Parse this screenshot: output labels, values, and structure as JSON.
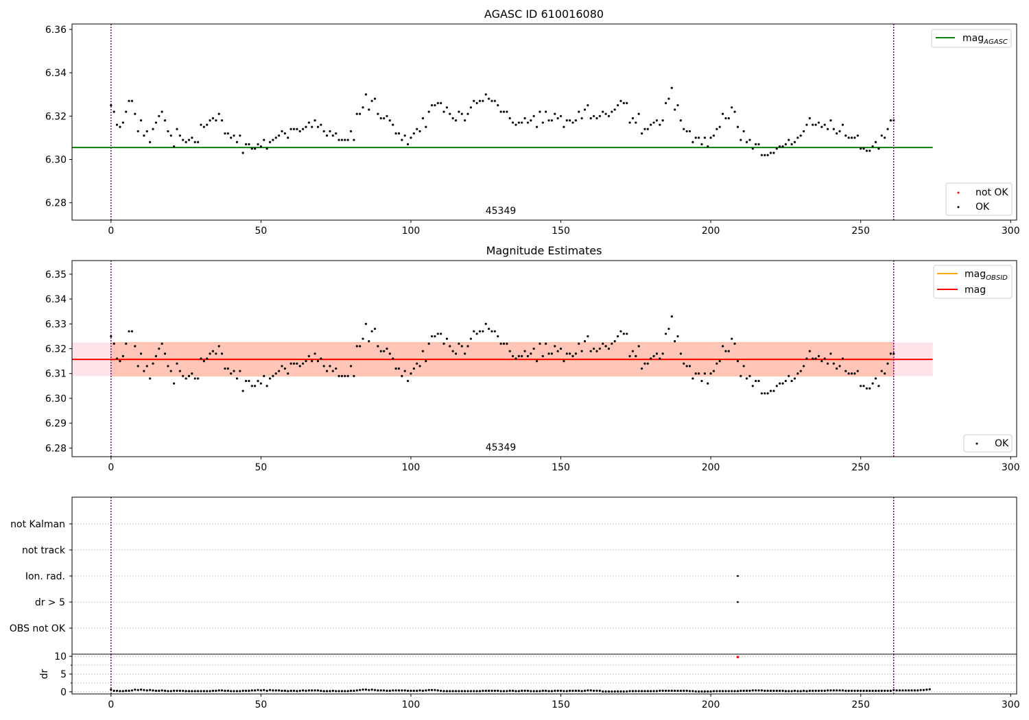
{
  "figure": {
    "width": 1500,
    "height": 1050,
    "colors": {
      "ok": "#000000",
      "not_ok": "#ff0000",
      "agasc": "#008000",
      "obsid": "#ffa500",
      "mag": "#ff0000",
      "band_outer": "#ffc0cb",
      "band_inner": "#ffa07a",
      "vline": "#800080",
      "grid": "#b0b0b0"
    }
  },
  "chart_data": [
    {
      "id": "panel1",
      "type": "scatter",
      "title": "AGASC ID 610016080",
      "xlabel": "",
      "ylabel": "",
      "xlim": [
        -13,
        302
      ],
      "ylim": [
        6.272,
        6.3625
      ],
      "xticks": [
        0,
        50,
        100,
        150,
        200,
        250,
        300
      ],
      "yticks": [
        6.28,
        6.3,
        6.32,
        6.34,
        6.36
      ],
      "yticklabels": [
        "6.28",
        "6.30",
        "6.32",
        "6.34",
        "6.36"
      ],
      "obsid_label": "45349",
      "vlines": [
        0,
        261
      ],
      "hlines": [
        {
          "name": "mag_AGASC",
          "y": 6.3055,
          "x": [
            -13,
            274
          ],
          "color": "#008000"
        }
      ],
      "legend_upper": {
        "position": "upper right",
        "entries": [
          {
            "label": "mag",
            "sub": "AGASC",
            "kind": "line",
            "color": "#008000"
          }
        ]
      },
      "legend_lower": {
        "position": "lower right",
        "entries": [
          {
            "label": "not OK",
            "kind": "marker",
            "color": "#ff0000"
          },
          {
            "label": "OK",
            "kind": "marker",
            "color": "#000000"
          }
        ]
      },
      "series": [
        {
          "name": "OK",
          "color": "#000000",
          "values": [
            6.325,
            6.322,
            6.316,
            6.315,
            6.317,
            6.322,
            6.327,
            6.327,
            6.321,
            6.313,
            6.318,
            6.311,
            6.313,
            6.308,
            6.314,
            6.317,
            6.32,
            6.322,
            6.318,
            6.313,
            6.311,
            6.306,
            6.314,
            6.311,
            6.309,
            6.308,
            6.309,
            6.31,
            6.308,
            6.308,
            6.316,
            6.315,
            6.316,
            6.318,
            6.319,
            6.318,
            6.321,
            6.318,
            6.312,
            6.312,
            6.31,
            6.311,
            6.308,
            6.311,
            6.303,
            6.307,
            6.307,
            6.305,
            6.305,
            6.307,
            6.306,
            6.309,
            6.305,
            6.308,
            6.309,
            6.31,
            6.311,
            6.313,
            6.312,
            6.31,
            6.314,
            6.314,
            6.314,
            6.313,
            6.314,
            6.315,
            6.317,
            6.315,
            6.318,
            6.315,
            6.316,
            6.313,
            6.311,
            6.313,
            6.311,
            6.312,
            6.309,
            6.309,
            6.309,
            6.309,
            6.313,
            6.309,
            6.321,
            6.321,
            6.324,
            6.33,
            6.323,
            6.327,
            6.328,
            6.321,
            6.319,
            6.319,
            6.32,
            6.318,
            6.316,
            6.312,
            6.312,
            6.309,
            6.311,
            6.307,
            6.31,
            6.312,
            6.314,
            6.313,
            6.319,
            6.315,
            6.322,
            6.325,
            6.325,
            6.326,
            6.326,
            6.322,
            6.324,
            6.321,
            6.319,
            6.318,
            6.322,
            6.321,
            6.318,
            6.321,
            6.324,
            6.327,
            6.326,
            6.327,
            6.327,
            6.33,
            6.328,
            6.327,
            6.327,
            6.325,
            6.322,
            6.322,
            6.322,
            6.319,
            6.317,
            6.316,
            6.317,
            6.317,
            6.319,
            6.317,
            6.318,
            6.32,
            6.315,
            6.322,
            6.317,
            6.322,
            6.318,
            6.318,
            6.321,
            6.319,
            6.32,
            6.315,
            6.318,
            6.318,
            6.317,
            6.318,
            6.322,
            6.319,
            6.323,
            6.325,
            6.319,
            6.32,
            6.319,
            6.32,
            6.322,
            6.321,
            6.32,
            6.322,
            6.323,
            6.325,
            6.327,
            6.326,
            6.326,
            6.317,
            6.319,
            6.317,
            6.321,
            6.312,
            6.314,
            6.314,
            6.316,
            6.317,
            6.318,
            6.316,
            6.318,
            6.326,
            6.328,
            6.333,
            6.323,
            6.325,
            6.318,
            6.314,
            6.313,
            6.313,
            6.308,
            6.31,
            6.31,
            6.307,
            6.31,
            6.306,
            6.31,
            6.311,
            6.314,
            6.315,
            6.321,
            6.319,
            6.319,
            6.324,
            6.322,
            6.315,
            6.309,
            6.313,
            6.308,
            6.309,
            6.305,
            6.307,
            6.307,
            6.302,
            6.302,
            6.302,
            6.303,
            6.303,
            6.305,
            6.306,
            6.306,
            6.307,
            6.309,
            6.307,
            6.308,
            6.31,
            6.311,
            6.313,
            6.316,
            6.319,
            6.316,
            6.316,
            6.317,
            6.315,
            6.316,
            6.314,
            6.318,
            6.314,
            6.312,
            6.313,
            6.316,
            6.311,
            6.31,
            6.31,
            6.31,
            6.311,
            6.305,
            6.305,
            6.304,
            6.304,
            6.306,
            6.308,
            6.305,
            6.311,
            6.31,
            6.314,
            6.318,
            6.318
          ]
        }
      ]
    },
    {
      "id": "panel2",
      "type": "scatter",
      "title": "Magnitude Estimates",
      "xlabel": "",
      "ylabel": "",
      "xlim": [
        -13,
        302
      ],
      "ylim": [
        6.2765,
        6.3555
      ],
      "xticks": [
        0,
        50,
        100,
        150,
        200,
        250,
        300
      ],
      "yticks": [
        6.28,
        6.29,
        6.3,
        6.31,
        6.32,
        6.33,
        6.34,
        6.35
      ],
      "yticklabels": [
        "6.28",
        "6.29",
        "6.30",
        "6.31",
        "6.32",
        "6.33",
        "6.34",
        "6.35"
      ],
      "obsid_label": "45349",
      "vlines": [
        0,
        261
      ],
      "bands": [
        {
          "name": "mag band",
          "y0": 6.309,
          "y1": 6.3225,
          "x": [
            -13,
            274
          ],
          "color": "#ffc0cb"
        },
        {
          "name": "mag_OBSID band",
          "y0": 6.309,
          "y1": 6.3225,
          "x": [
            0,
            261
          ],
          "color": "#ffa07a"
        }
      ],
      "hlines": [
        {
          "name": "mag_OBSID",
          "y": 6.3157,
          "x": [
            0,
            261
          ],
          "color": "#ffa500"
        },
        {
          "name": "mag",
          "y": 6.3157,
          "x": [
            -13,
            274
          ],
          "color": "#ff0000"
        }
      ],
      "legend_upper": {
        "position": "upper right",
        "entries": [
          {
            "label": "mag",
            "sub": "OBSID",
            "kind": "line",
            "color": "#ffa500"
          },
          {
            "label": "mag",
            "sub": "",
            "kind": "line",
            "color": "#ff0000"
          }
        ]
      },
      "legend_lower": {
        "position": "lower right",
        "entries": [
          {
            "label": "OK",
            "kind": "marker",
            "color": "#000000"
          }
        ]
      },
      "series": [
        {
          "name": "OK",
          "color": "#000000",
          "same_as": "panel1"
        }
      ]
    },
    {
      "id": "panel3",
      "type": "scatter",
      "title": "",
      "xlim": [
        -13,
        302
      ],
      "categories": [
        "not Kalman",
        "not track",
        "Ion. rad.",
        "dr > 5",
        "OBS not OK"
      ],
      "vlines": [
        0,
        261
      ],
      "points": [
        {
          "category": "Ion. rad.",
          "x": 209,
          "color": "#000000"
        },
        {
          "category": "dr > 5",
          "x": 209,
          "color": "#000000"
        }
      ]
    },
    {
      "id": "panel4",
      "type": "scatter",
      "ylabel": "dr",
      "xlim": [
        -13,
        302
      ],
      "ylim": [
        -0.6,
        10.6
      ],
      "xticks": [
        0,
        50,
        100,
        150,
        200,
        250,
        300
      ],
      "yticks": [
        0,
        5,
        10
      ],
      "yticklabels": [
        "0",
        "5",
        "10"
      ],
      "vlines": [
        0,
        261
      ],
      "series": [
        {
          "name": "OK",
          "color": "#000000",
          "values": [
            0.6,
            0.3,
            0.3,
            0.2,
            0.2,
            0.3,
            0.3,
            0.4,
            0.6,
            0.5,
            0.6,
            0.5,
            0.4,
            0.5,
            0.4,
            0.3,
            0.3,
            0.4,
            0.3,
            0.2,
            0.2,
            0.3,
            0.3,
            0.3,
            0.3,
            0.2,
            0.2,
            0.2,
            0.2,
            0.2,
            0.2,
            0.2,
            0.2,
            0.2,
            0.3,
            0.3,
            0.4,
            0.4,
            0.3,
            0.3,
            0.2,
            0.2,
            0.2,
            0.2,
            0.3,
            0.3,
            0.3,
            0.4,
            0.4,
            0.5,
            0.4,
            0.5,
            0.3,
            0.5,
            0.4,
            0.4,
            0.4,
            0.3,
            0.3,
            0.2,
            0.3,
            0.3,
            0.2,
            0.3,
            0.4,
            0.3,
            0.4,
            0.4,
            0.4,
            0.4,
            0.3,
            0.2,
            0.2,
            0.2,
            0.3,
            0.2,
            0.2,
            0.2,
            0.2,
            0.2,
            0.3,
            0.3,
            0.4,
            0.5,
            0.6,
            0.6,
            0.5,
            0.6,
            0.5,
            0.4,
            0.4,
            0.4,
            0.3,
            0.3,
            0.4,
            0.4,
            0.4,
            0.4,
            0.4,
            0.3,
            0.3,
            0.3,
            0.3,
            0.4,
            0.3,
            0.4,
            0.5,
            0.5,
            0.5,
            0.4,
            0.3,
            0.2,
            0.2,
            0.2,
            0.2,
            0.2,
            0.2,
            0.2,
            0.2,
            0.2,
            0.2,
            0.2,
            0.2,
            0.2,
            0.3,
            0.3,
            0.3,
            0.3,
            0.3,
            0.3,
            0.2,
            0.2,
            0.2,
            0.3,
            0.3,
            0.2,
            0.2,
            0.3,
            0.3,
            0.3,
            0.2,
            0.2,
            0.2,
            0.2,
            0.3,
            0.3,
            0.2,
            0.2,
            0.3,
            0.3,
            0.3,
            0.2,
            0.2,
            0.3,
            0.3,
            0.3,
            0.3,
            0.2,
            0.3,
            0.4,
            0.4,
            0.3,
            0.3,
            0.3,
            0.1,
            0.1,
            0.1,
            0.1,
            0.1,
            0.1,
            0.1,
            0.1,
            0.1,
            0.2,
            0.2,
            0.2,
            0.2,
            0.2,
            0.2,
            0.2,
            0.2,
            0.2,
            0.2,
            0.3,
            0.3,
            0.3,
            0.3,
            0.3,
            0.3,
            0.3,
            0.3,
            0.3,
            0.3,
            0.2,
            0.2,
            0.1,
            0.1,
            0.1,
            0.1,
            0.1,
            0.1,
            0.2,
            0.2,
            0.2,
            0.2,
            0.2,
            0.2,
            0.2,
            0.2,
            0.2,
            0.3,
            0.3,
            0.3,
            0.3,
            0.4,
            0.4,
            0.4,
            0.4,
            0.3,
            0.3,
            0.3,
            0.3,
            0.3,
            0.3,
            0.3,
            0.2,
            0.2,
            0.2,
            0.3,
            0.2,
            0.2,
            0.3,
            0.2,
            0.3,
            0.3,
            0.3,
            0.3,
            0.3,
            0.3,
            0.4,
            0.4,
            0.4,
            0.4,
            0.4,
            0.4,
            0.3,
            0.3,
            0.3,
            0.3,
            0.3,
            0.3,
            0.3,
            0.3,
            0.3,
            0.3,
            0.3,
            0.3,
            0.3,
            0.3,
            0.3,
            0.3,
            0.5,
            0.4,
            0.4,
            0.4,
            0.4,
            0.4,
            0.4,
            0.4,
            0.4,
            0.5,
            0.5,
            0.6,
            0.7
          ]
        },
        {
          "name": "not OK",
          "color": "#ff0000",
          "x": [
            209
          ],
          "values": [
            9.8
          ]
        }
      ]
    }
  ]
}
